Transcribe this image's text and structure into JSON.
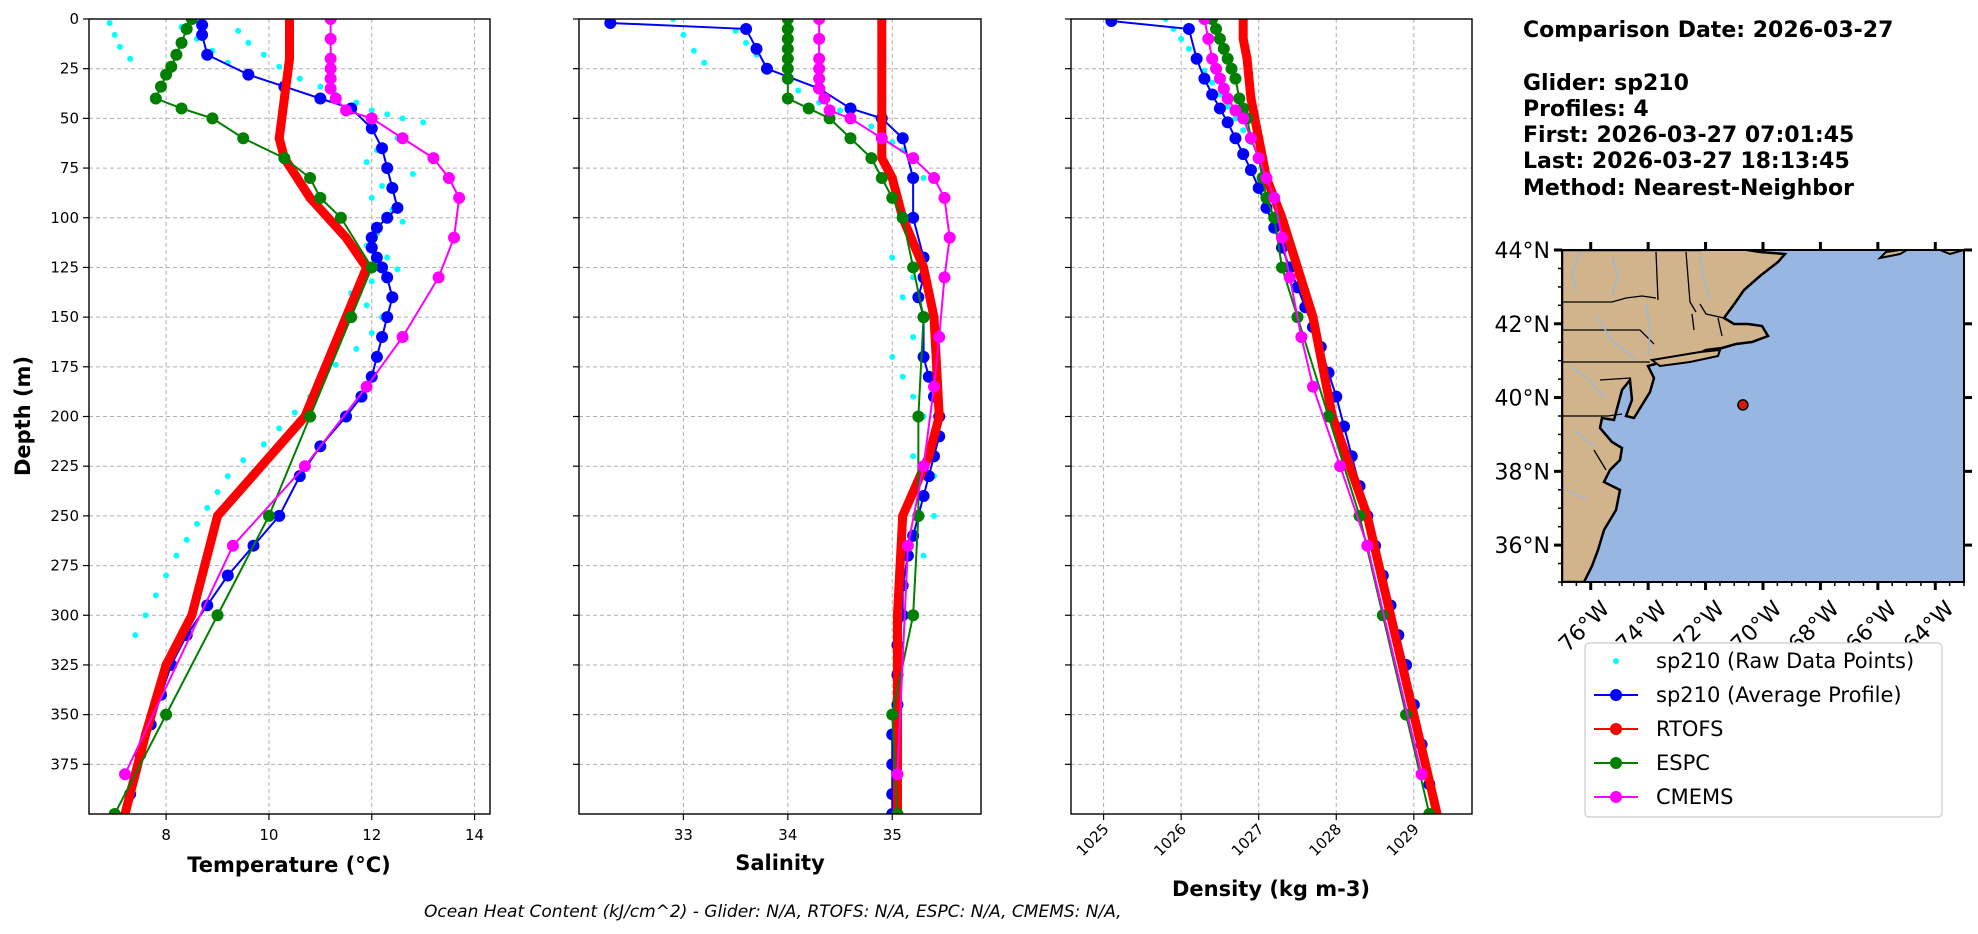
{
  "info": {
    "comparison_date": "Comparison Date: 2026-03-27",
    "glider": "Glider: sp210",
    "profiles": "Profiles: 4",
    "first": "First: 2026-03-27 07:01:45",
    "last": "Last: 2026-03-27 18:13:45",
    "method": "Method: Nearest-Neighbor"
  },
  "footer": "Ocean Heat Content (kJ/cm^2) - Glider: N/A,  RTOFS: N/A,  ESPC: N/A,  CMEMS: N/A,",
  "colors": {
    "raw": "#00ffff",
    "avg": "#0000ff",
    "rtofs": "#ff0000",
    "espc": "#008000",
    "cmems": "#ff00ff"
  },
  "legend": [
    {
      "key": "raw",
      "label": "sp210 (Raw Data Points)"
    },
    {
      "key": "avg",
      "label": "sp210 (Average Profile)"
    },
    {
      "key": "rtofs",
      "label": "RTOFS"
    },
    {
      "key": "espc",
      "label": "ESPC"
    },
    {
      "key": "cmems",
      "label": "CMEMS"
    }
  ],
  "map": {
    "lat_labels": [
      "44°N",
      "42°N",
      "40°N",
      "38°N",
      "36°N"
    ],
    "lon_labels": [
      "76°W",
      "74°W",
      "72°W",
      "70°W",
      "68°W",
      "66°W",
      "64°W"
    ],
    "extent": {
      "lon": [
        -77,
        -63
      ],
      "lat": [
        35,
        44
      ]
    },
    "marker": {
      "lon": -70.7,
      "lat": 39.8
    },
    "land_color": "#d2b48c",
    "ocean_color": "#97b6e1",
    "lakes_color": "#97b6e1"
  },
  "chart_data": [
    {
      "type": "line",
      "xlabel": "Temperature (°C)",
      "ylabel": "Depth (m)",
      "xlim": [
        6.5,
        14.3
      ],
      "ylim": [
        400,
        0
      ],
      "xticks": [
        8,
        10,
        12,
        14
      ],
      "yticks": [
        0,
        25,
        50,
        75,
        100,
        125,
        150,
        175,
        200,
        225,
        250,
        275,
        300,
        325,
        350,
        375
      ],
      "grid": true,
      "series": [
        {
          "name": "sp210 (Raw Data Points)",
          "key": "raw",
          "style": "dots",
          "x": [
            6.9,
            7.0,
            7.1,
            7.3,
            8.3,
            8.6,
            8.9,
            9.2,
            9.4,
            9.6,
            9.9,
            10.2,
            10.6,
            11.0,
            11.3,
            11.7,
            12.0,
            12.3,
            12.6,
            13.0,
            12.5,
            12.1,
            11.9,
            12.8,
            12.2,
            12.0,
            12.4,
            12.6,
            12.1,
            11.9,
            12.3,
            12.5,
            12.0,
            11.6,
            11.9,
            12.2,
            12.0,
            11.7,
            11.3,
            11.0,
            10.8,
            10.5,
            10.2,
            9.9,
            9.5,
            9.2,
            9.0,
            8.8,
            8.6,
            8.4,
            8.2,
            8.0,
            7.8,
            7.6,
            7.4
          ],
          "y": [
            2,
            8,
            14,
            20,
            4,
            10,
            16,
            22,
            6,
            12,
            18,
            24,
            30,
            34,
            38,
            42,
            46,
            48,
            50,
            52,
            60,
            66,
            72,
            78,
            84,
            90,
            96,
            102,
            108,
            114,
            120,
            126,
            132,
            138,
            144,
            150,
            158,
            166,
            174,
            182,
            190,
            198,
            206,
            214,
            222,
            230,
            238,
            246,
            254,
            262,
            270,
            280,
            290,
            300,
            310
          ]
        },
        {
          "name": "sp210 (Average Profile)",
          "key": "avg",
          "style": "line-marker",
          "x": [
            8.7,
            8.7,
            8.8,
            9.6,
            10.3,
            11.0,
            11.6,
            12.0,
            12.2,
            12.3,
            12.4,
            12.5,
            12.3,
            12.1,
            12.0,
            12.0,
            12.1,
            12.2,
            12.3,
            12.4,
            12.3,
            12.2,
            12.1,
            12.0,
            11.8,
            11.5,
            11.0,
            10.6,
            10.2,
            9.7,
            9.2,
            8.8,
            8.4,
            8.1,
            7.9,
            7.7,
            7.5,
            7.3
          ],
          "y": [
            3,
            8,
            18,
            28,
            34,
            40,
            45,
            55,
            65,
            75,
            85,
            95,
            100,
            105,
            110,
            115,
            120,
            125,
            130,
            140,
            150,
            160,
            170,
            180,
            190,
            200,
            215,
            230,
            250,
            265,
            280,
            295,
            310,
            325,
            340,
            355,
            370,
            390
          ]
        },
        {
          "name": "RTOFS",
          "key": "rtofs",
          "style": "thick",
          "x": [
            10.4,
            10.4,
            10.3,
            10.2,
            10.3,
            10.8,
            11.5,
            11.9,
            11.5,
            10.7,
            9.0,
            8.5,
            8.0,
            7.6,
            7.2
          ],
          "y": [
            0,
            20,
            40,
            60,
            70,
            90,
            110,
            125,
            150,
            200,
            250,
            300,
            325,
            360,
            400
          ]
        },
        {
          "name": "ESPC",
          "key": "espc",
          "style": "line-marker",
          "x": [
            8.5,
            8.4,
            8.3,
            8.2,
            8.1,
            8.0,
            7.9,
            7.8,
            8.3,
            8.9,
            9.5,
            10.3,
            10.8,
            11.0,
            11.4,
            12.0,
            11.6,
            10.8,
            10.0,
            9.0,
            8.0,
            7.0
          ],
          "y": [
            0,
            5,
            12,
            18,
            24,
            28,
            34,
            40,
            45,
            50,
            60,
            70,
            80,
            90,
            100,
            125,
            150,
            200,
            250,
            300,
            350,
            400
          ]
        },
        {
          "name": "CMEMS",
          "key": "cmems",
          "style": "line-marker",
          "x": [
            11.2,
            11.2,
            11.2,
            11.2,
            11.2,
            11.2,
            11.3,
            11.5,
            12.0,
            12.6,
            13.2,
            13.5,
            13.7,
            13.6,
            13.3,
            12.6,
            11.9,
            10.7,
            9.3,
            7.2
          ],
          "y": [
            0,
            10,
            20,
            25,
            30,
            35,
            40,
            46,
            50,
            60,
            70,
            80,
            90,
            110,
            130,
            160,
            185,
            225,
            265,
            380
          ]
        }
      ]
    },
    {
      "type": "line",
      "xlabel": "Salinity",
      "ylabel": "",
      "xlim": [
        32.0,
        35.85
      ],
      "ylim": [
        400,
        0
      ],
      "xticks": [
        33,
        34,
        35
      ],
      "grid": true,
      "series": [
        {
          "name": "sp210 (Raw Data Points)",
          "key": "raw",
          "style": "dots",
          "x": [
            32.9,
            33.0,
            33.1,
            33.2,
            33.5,
            33.6,
            33.7,
            33.8,
            34.0,
            34.1,
            34.3,
            34.5,
            34.6,
            34.8,
            34.9,
            35.0,
            35.1,
            35.2,
            35.3,
            35.1,
            35.0,
            35.2,
            35.1,
            35.3,
            35.2,
            35.0,
            35.1,
            35.2,
            35.3,
            35.4,
            35.2,
            35.4,
            35.3,
            35.4,
            35.2,
            35.3
          ],
          "y": [
            0,
            8,
            16,
            22,
            6,
            12,
            18,
            24,
            30,
            36,
            42,
            46,
            50,
            54,
            58,
            62,
            66,
            70,
            80,
            100,
            120,
            130,
            140,
            150,
            160,
            170,
            180,
            190,
            200,
            210,
            220,
            230,
            240,
            250,
            260,
            270
          ]
        },
        {
          "name": "sp210 (Average Profile)",
          "key": "avg",
          "style": "line-marker",
          "x": [
            32.3,
            33.6,
            33.7,
            33.8,
            34.3,
            34.6,
            34.9,
            35.1,
            35.2,
            35.2,
            35.3,
            35.3,
            35.25,
            35.3,
            35.3,
            35.35,
            35.4,
            35.45,
            35.45,
            35.4,
            35.35,
            35.3,
            35.25,
            35.2,
            35.15,
            35.1,
            35.1,
            35.05,
            35.05,
            35.05,
            35.0,
            35.0,
            35.0,
            35.0
          ],
          "y": [
            2,
            5,
            15,
            25,
            35,
            45,
            50,
            60,
            80,
            100,
            120,
            130,
            140,
            150,
            170,
            180,
            190,
            200,
            210,
            220,
            230,
            240,
            250,
            260,
            270,
            285,
            300,
            315,
            330,
            345,
            360,
            375,
            390,
            400
          ]
        },
        {
          "name": "RTOFS",
          "key": "rtofs",
          "style": "thick",
          "x": [
            34.9,
            34.9,
            34.9,
            34.9,
            34.9,
            35.0,
            35.1,
            35.3,
            35.4,
            35.45,
            35.35,
            35.1,
            35.05,
            35.05,
            35.05
          ],
          "y": [
            0,
            20,
            40,
            60,
            70,
            80,
            100,
            125,
            150,
            200,
            220,
            250,
            300,
            350,
            400
          ]
        },
        {
          "name": "ESPC",
          "key": "espc",
          "style": "line-marker",
          "x": [
            34.0,
            34.0,
            34.0,
            34.0,
            34.0,
            34.0,
            34.0,
            34.0,
            34.2,
            34.4,
            34.6,
            34.8,
            34.9,
            35.0,
            35.1,
            35.2,
            35.3,
            35.25,
            35.25,
            35.2,
            35.0,
            35.05
          ],
          "y": [
            0,
            5,
            10,
            15,
            20,
            25,
            30,
            40,
            45,
            50,
            60,
            70,
            80,
            90,
            100,
            125,
            150,
            200,
            250,
            300,
            350,
            400
          ]
        },
        {
          "name": "CMEMS",
          "key": "cmems",
          "style": "line-marker",
          "x": [
            34.3,
            34.3,
            34.3,
            34.3,
            34.3,
            34.3,
            34.35,
            34.4,
            34.6,
            34.9,
            35.2,
            35.4,
            35.5,
            35.55,
            35.5,
            35.45,
            35.4,
            35.3,
            35.15,
            35.05
          ],
          "y": [
            0,
            10,
            20,
            25,
            30,
            35,
            40,
            46,
            50,
            60,
            70,
            80,
            90,
            110,
            130,
            160,
            185,
            225,
            265,
            380
          ]
        }
      ]
    },
    {
      "type": "line",
      "xlabel": "Density (kg m-3)",
      "ylabel": "",
      "xlim": [
        1024.58,
        1029.75
      ],
      "ylim": [
        400,
        0
      ],
      "xticks": [
        1025,
        1026,
        1027,
        1028,
        1029
      ],
      "grid": true,
      "series": [
        {
          "name": "sp210 (Raw Data Points)",
          "key": "raw",
          "style": "dots",
          "x": [
            1025.8,
            1025.9,
            1026.0,
            1026.1,
            1026.2,
            1026.3,
            1026.4,
            1026.5,
            1026.6,
            1026.7,
            1026.8,
            1026.9,
            1027.0,
            1027.1,
            1027.2
          ],
          "y": [
            0,
            5,
            10,
            15,
            20,
            26,
            32,
            38,
            44,
            50,
            56,
            62,
            70,
            80,
            90
          ]
        },
        {
          "name": "sp210 (Average Profile)",
          "key": "avg",
          "style": "line-marker",
          "x": [
            1025.1,
            1026.1,
            1026.2,
            1026.3,
            1026.4,
            1026.5,
            1026.6,
            1026.7,
            1026.8,
            1026.9,
            1027.0,
            1027.1,
            1027.2,
            1027.3,
            1027.4,
            1027.5,
            1027.6,
            1027.7,
            1027.8,
            1027.9,
            1028.0,
            1028.1,
            1028.2,
            1028.3,
            1028.4,
            1028.5,
            1028.6,
            1028.7,
            1028.8,
            1028.9,
            1029.0,
            1029.1,
            1029.2,
            1029.25
          ],
          "y": [
            1,
            5,
            20,
            30,
            38,
            45,
            52,
            60,
            68,
            76,
            85,
            95,
            105,
            115,
            125,
            135,
            145,
            155,
            165,
            178,
            190,
            205,
            220,
            235,
            250,
            265,
            280,
            295,
            310,
            325,
            345,
            365,
            385,
            400
          ]
        },
        {
          "name": "RTOFS",
          "key": "rtofs",
          "style": "thick",
          "x": [
            1026.8,
            1026.8,
            1026.85,
            1026.9,
            1027.0,
            1027.1,
            1027.3,
            1027.5,
            1027.7,
            1027.95,
            1028.4,
            1028.7,
            1029.0,
            1029.3
          ],
          "y": [
            0,
            10,
            20,
            40,
            60,
            80,
            100,
            125,
            150,
            200,
            250,
            300,
            350,
            400
          ]
        },
        {
          "name": "ESPC",
          "key": "espc",
          "style": "line-marker",
          "x": [
            1026.4,
            1026.45,
            1026.5,
            1026.55,
            1026.6,
            1026.65,
            1026.7,
            1026.75,
            1026.8,
            1026.85,
            1026.9,
            1027.0,
            1027.05,
            1027.1,
            1027.2,
            1027.3,
            1027.5,
            1027.9,
            1028.3,
            1028.6,
            1028.9,
            1029.2
          ],
          "y": [
            0,
            5,
            10,
            15,
            20,
            25,
            30,
            40,
            45,
            50,
            60,
            70,
            80,
            90,
            100,
            125,
            150,
            200,
            250,
            300,
            350,
            400
          ]
        },
        {
          "name": "CMEMS",
          "key": "cmems",
          "style": "line-marker",
          "x": [
            1026.3,
            1026.35,
            1026.4,
            1026.45,
            1026.5,
            1026.55,
            1026.6,
            1026.7,
            1026.8,
            1026.9,
            1027.0,
            1027.1,
            1027.2,
            1027.3,
            1027.4,
            1027.55,
            1027.7,
            1028.05,
            1028.4,
            1029.1
          ],
          "y": [
            0,
            10,
            20,
            25,
            30,
            35,
            40,
            46,
            50,
            60,
            70,
            80,
            90,
            110,
            130,
            160,
            185,
            225,
            265,
            380
          ]
        }
      ]
    }
  ]
}
